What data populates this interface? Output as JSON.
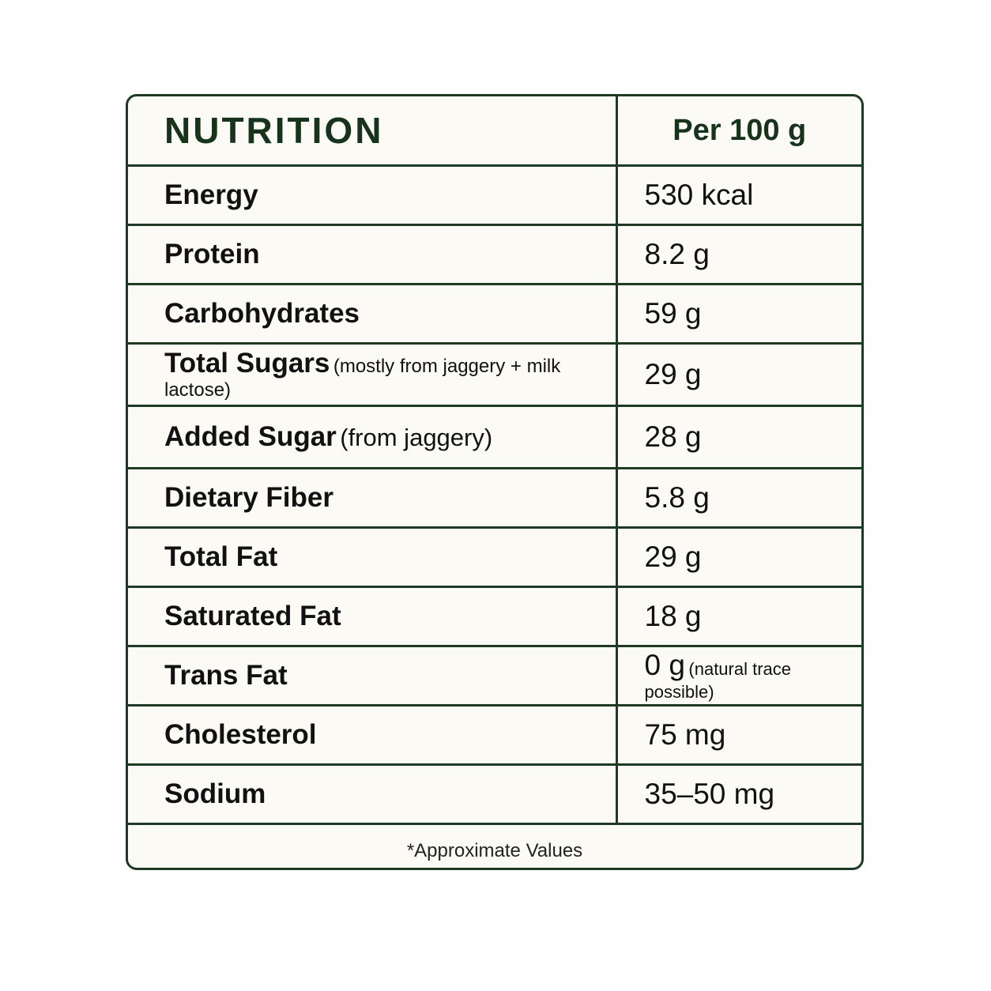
{
  "header": {
    "title": "NUTRITION",
    "per": "Per 100 g"
  },
  "rows": [
    {
      "label": "Energy",
      "note": "",
      "value": "530 kcal",
      "value_note": ""
    },
    {
      "label": "Protein",
      "note": "",
      "value": "8.2 g",
      "value_note": ""
    },
    {
      "label": "Carbohydrates",
      "note": "",
      "value": "59 g",
      "value_note": ""
    },
    {
      "label": "Total Sugars",
      "note": "(mostly from jaggery + milk lactose)",
      "value": "29 g",
      "value_note": ""
    },
    {
      "label": "Added Sugar",
      "note": "(from jaggery)",
      "value": "28 g",
      "value_note": ""
    },
    {
      "label": "Dietary Fiber",
      "note": "",
      "value": "5.8 g",
      "value_note": ""
    },
    {
      "label": "Total Fat",
      "note": "",
      "value": "29 g",
      "value_note": ""
    },
    {
      "label": "Saturated Fat",
      "note": "",
      "value": "18 g",
      "value_note": ""
    },
    {
      "label": "Trans Fat",
      "note": "",
      "value": "0 g",
      "value_note": "(natural trace possible)"
    },
    {
      "label": "Cholesterol",
      "note": "",
      "value": "75 mg",
      "value_note": ""
    },
    {
      "label": "Sodium",
      "note": "",
      "value": "35–50 mg",
      "value_note": ""
    }
  ],
  "footer": {
    "note": "*Approximate Values"
  }
}
